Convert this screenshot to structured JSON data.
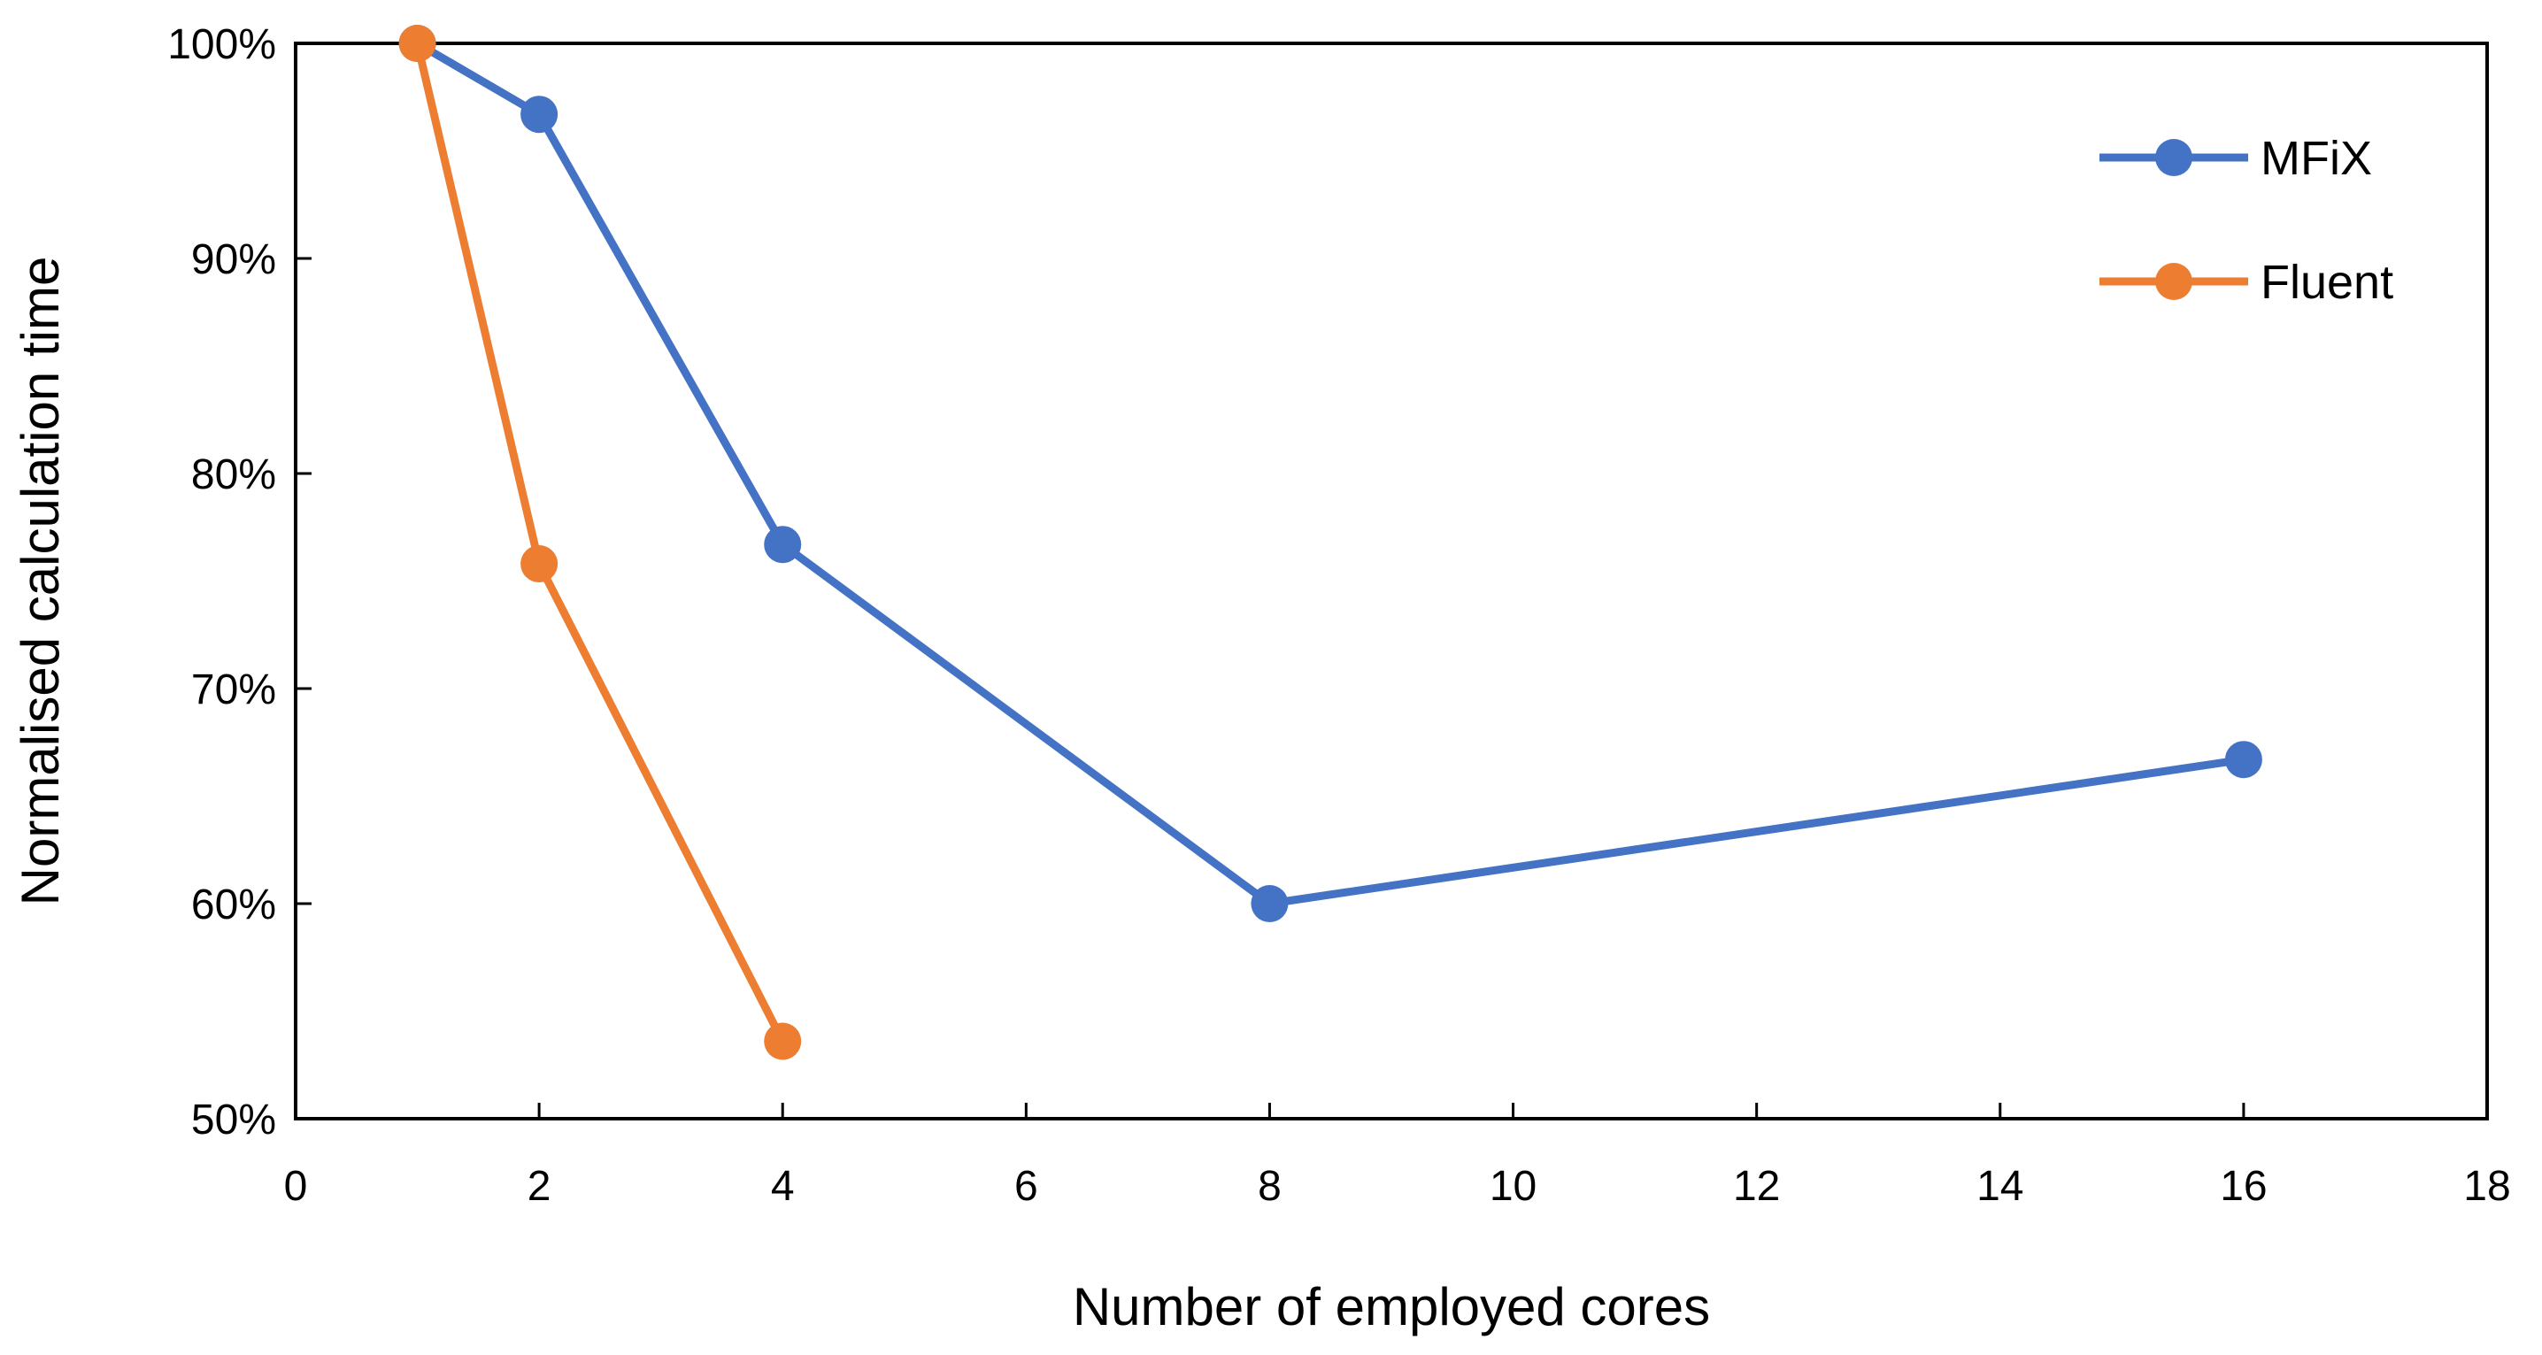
{
  "chart_data": {
    "type": "line",
    "title": "",
    "xlabel": "Number of employed cores",
    "ylabel": "Normalised calculation time",
    "xlim": [
      0,
      18
    ],
    "ylim": [
      50,
      100
    ],
    "x_ticks": [
      0,
      2,
      4,
      6,
      8,
      10,
      12,
      14,
      16,
      18
    ],
    "x_tick_labels": [
      "0",
      "2",
      "4",
      "6",
      "8",
      "10",
      "12",
      "14",
      "16",
      "18"
    ],
    "y_ticks": [
      50,
      60,
      70,
      80,
      90,
      100
    ],
    "y_tick_labels": [
      "50%",
      "60%",
      "70%",
      "80%",
      "90%",
      "100%"
    ],
    "grid": false,
    "legend_position": "top-right",
    "series": [
      {
        "name": "MFiX",
        "color": "#4472C4",
        "x": [
          1,
          2,
          4,
          8,
          16
        ],
        "y": [
          100,
          96.7,
          76.7,
          60,
          66.7
        ]
      },
      {
        "name": "Fluent",
        "color": "#ED7D31",
        "x": [
          1,
          2,
          4
        ],
        "y": [
          100,
          75.8,
          53.6
        ]
      }
    ]
  }
}
